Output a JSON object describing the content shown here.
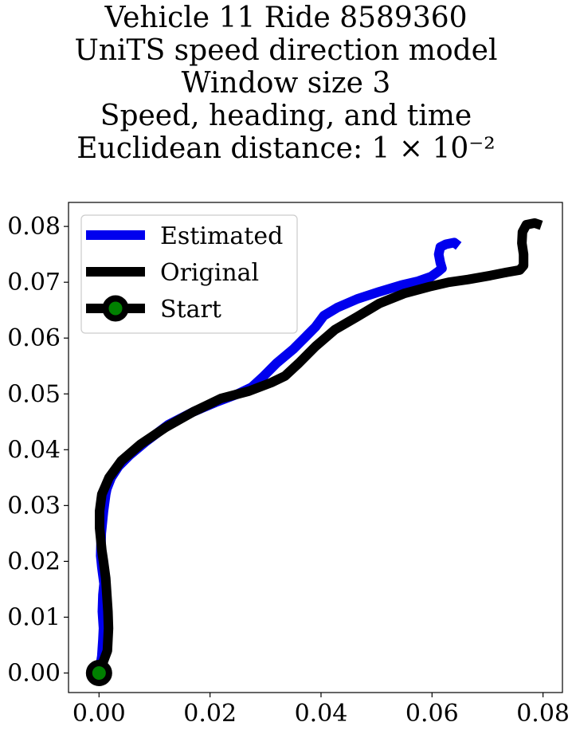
{
  "chart_data": {
    "type": "line",
    "title_lines": [
      "Vehicle 11 Ride 8589360",
      "UniTS speed direction model",
      "Window size 3",
      "Speed, heading, and time",
      "Euclidean distance: 1 × 10⁻²"
    ],
    "xlabel": "",
    "ylabel": "",
    "xlim": [
      -0.0055,
      0.0835
    ],
    "ylim": [
      -0.0035,
      0.0843
    ],
    "xticks": [
      0.0,
      0.02,
      0.04,
      0.06,
      0.08
    ],
    "xtick_labels": [
      "0.00",
      "0.02",
      "0.04",
      "0.06",
      "0.08"
    ],
    "yticks": [
      0.0,
      0.01,
      0.02,
      0.03,
      0.04,
      0.05,
      0.06,
      0.07,
      0.08
    ],
    "ytick_labels": [
      "0.00",
      "0.01",
      "0.02",
      "0.03",
      "0.04",
      "0.05",
      "0.06",
      "0.07",
      "0.08"
    ],
    "grid": false,
    "legend_position": "upper-left",
    "series": [
      {
        "name": "Estimated",
        "color": "#0000ee",
        "x": [
          0.0,
          0.0005,
          0.0007,
          0.0008,
          0.0006,
          0.0007,
          0.0009,
          0.0005,
          0.0003,
          0.0004,
          0.0008,
          0.0012,
          0.0014,
          0.0022,
          0.0035,
          0.0055,
          0.0085,
          0.0125,
          0.017,
          0.021,
          0.025,
          0.0275,
          0.0295,
          0.032,
          0.035,
          0.037,
          0.039,
          0.0405,
          0.043,
          0.0465,
          0.0505,
          0.0545,
          0.0575,
          0.0598,
          0.0612,
          0.0618,
          0.0615,
          0.0612,
          0.0615,
          0.0625,
          0.064,
          0.0648
        ],
        "y": [
          0.0,
          0.003,
          0.006,
          0.008,
          0.011,
          0.014,
          0.016,
          0.019,
          0.021,
          0.025,
          0.029,
          0.032,
          0.033,
          0.035,
          0.037,
          0.039,
          0.0415,
          0.0445,
          0.0468,
          0.0485,
          0.05,
          0.0512,
          0.053,
          0.0555,
          0.058,
          0.06,
          0.062,
          0.064,
          0.0655,
          0.067,
          0.0683,
          0.0695,
          0.0702,
          0.071,
          0.072,
          0.0725,
          0.0735,
          0.075,
          0.0763,
          0.0768,
          0.0771,
          0.0765
        ]
      },
      {
        "name": "Original",
        "color": "#000000",
        "x": [
          0.0,
          0.0015,
          0.0017,
          0.0016,
          0.0014,
          0.0012,
          0.0008,
          0.0005,
          0.0001,
          0.0001,
          0.0005,
          0.0018,
          0.004,
          0.0075,
          0.012,
          0.017,
          0.022,
          0.027,
          0.031,
          0.0335,
          0.036,
          0.039,
          0.0425,
          0.0465,
          0.0505,
          0.055,
          0.0595,
          0.063,
          0.0665,
          0.0705,
          0.0735,
          0.0758,
          0.0765,
          0.0765,
          0.0762,
          0.0763,
          0.077,
          0.0785,
          0.0797
        ],
        "y": [
          0.0,
          0.004,
          0.008,
          0.011,
          0.014,
          0.017,
          0.02,
          0.022,
          0.026,
          0.029,
          0.032,
          0.035,
          0.038,
          0.041,
          0.044,
          0.0468,
          0.0492,
          0.0505,
          0.052,
          0.0532,
          0.0555,
          0.0585,
          0.0615,
          0.0638,
          0.0662,
          0.068,
          0.0692,
          0.07,
          0.0705,
          0.0712,
          0.0718,
          0.0722,
          0.073,
          0.075,
          0.077,
          0.079,
          0.0803,
          0.0806,
          0.0802
        ]
      },
      {
        "name": "Start",
        "color": "#000000",
        "marker_face": "#008000",
        "x": [
          0.0
        ],
        "y": [
          0.0
        ]
      }
    ]
  }
}
